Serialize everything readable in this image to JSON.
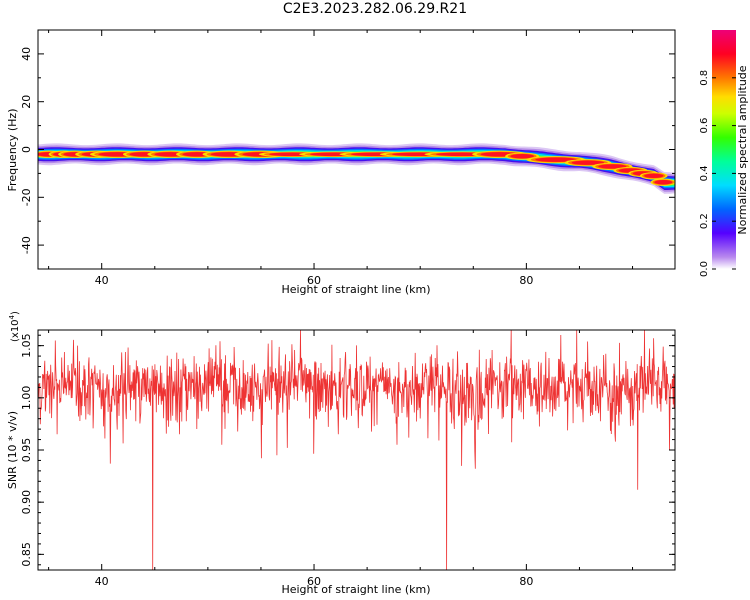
{
  "title": "C2E3.2023.282.06.29.R21",
  "chart_data": [
    {
      "type": "heatmap",
      "xlabel": "Height of straight line (km)",
      "ylabel": "Frequency (Hz)",
      "xlim": [
        34,
        94
      ],
      "ylim": [
        -50,
        50
      ],
      "xticks": [
        40,
        60,
        80
      ],
      "yticks": [
        -40,
        -20,
        0,
        20,
        40
      ],
      "colorbar": {
        "label": "Normalized spectral amplitude",
        "ticks": [
          "0.0",
          "0.2",
          "0.4",
          "0.6",
          "0.8"
        ],
        "range": [
          0,
          1
        ],
        "colormap": "rainbow (purple-blue-cyan-green-yellow-orange-red-magenta)"
      },
      "ridge": {
        "description_of_peak_frequency_track": "near-constant then decreasing",
        "height_km": [
          34,
          40,
          50,
          60,
          70,
          78,
          82,
          85,
          88,
          90,
          92,
          93
        ],
        "frequency_hz": [
          -2,
          -2,
          -2,
          -2,
          -2,
          -2,
          -4,
          -5,
          -7,
          -9,
          -11,
          -14
        ]
      }
    },
    {
      "type": "line",
      "xlabel": "Height of straight line (km)",
      "ylabel": "SNR (10 * v/v)",
      "y_multiplier": "(x10^4)",
      "y_multiplier_base": "(x10",
      "y_multiplier_exp": "4",
      "y_multiplier_close": ")",
      "xlim": [
        34,
        94
      ],
      "ylim": [
        0.835,
        1.065
      ],
      "xticks": [
        40,
        60,
        80
      ],
      "yticks": [
        "0.85",
        "0.90",
        "0.95",
        "1.00",
        "1.05"
      ],
      "series_color": "#ee3333",
      "baseline": 1.01,
      "notable_dips": [
        {
          "x": 35.8,
          "y": 0.965
        },
        {
          "x": 40.8,
          "y": 0.937
        },
        {
          "x": 44.8,
          "y": 0.83
        },
        {
          "x": 51.3,
          "y": 0.955
        },
        {
          "x": 56.5,
          "y": 0.945
        },
        {
          "x": 57.5,
          "y": 0.952
        },
        {
          "x": 62.3,
          "y": 0.965
        },
        {
          "x": 67.8,
          "y": 0.955
        },
        {
          "x": 72.5,
          "y": 0.83
        },
        {
          "x": 75.2,
          "y": 0.932
        },
        {
          "x": 90.5,
          "y": 0.912
        },
        {
          "x": 93.5,
          "y": 0.95
        }
      ]
    }
  ]
}
